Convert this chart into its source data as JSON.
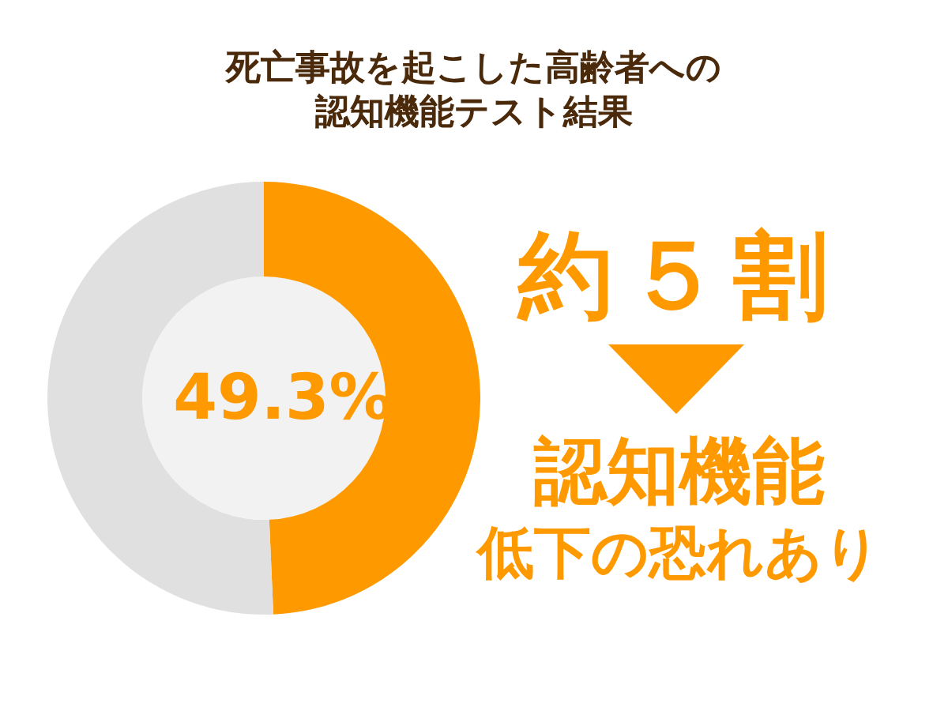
{
  "chart_data": {
    "type": "donut",
    "title": "死亡事故を起こした高齢者への認知機能テスト結果",
    "categories": [
      null,
      null
    ],
    "values": [
      49.3,
      50.7
    ],
    "colors": [
      "#ff9900",
      "#e0e0e0"
    ],
    "value_labels": [
      "49.3%",
      null
    ],
    "annotations": [
      "約５割",
      "認知機能",
      "低下の恐れあり"
    ]
  }
}
